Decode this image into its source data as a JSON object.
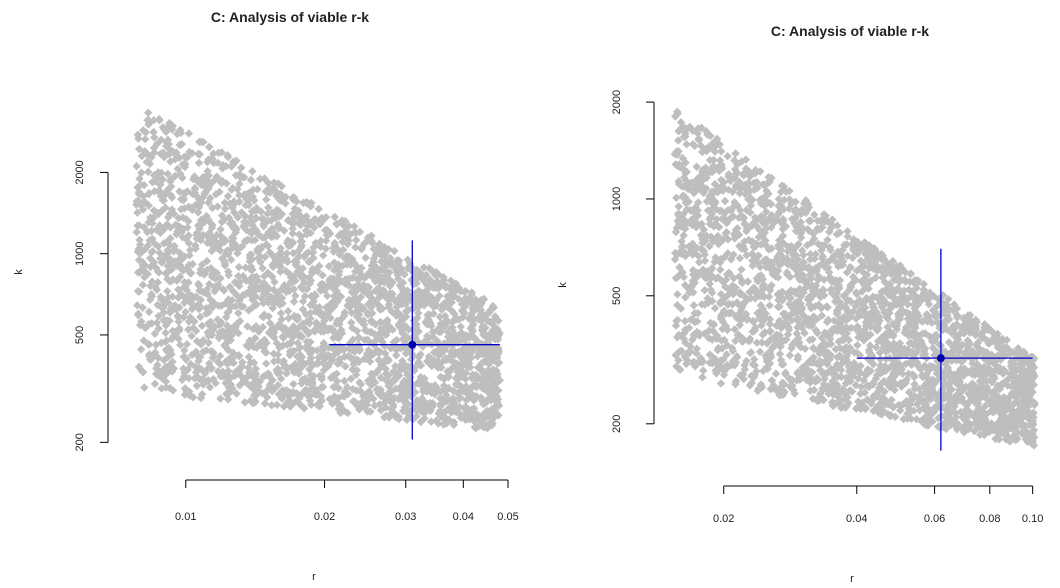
{
  "chart_data": [
    {
      "type": "scatter",
      "title": "C: Analysis of viable r-k",
      "xlabel": "r",
      "ylabel": "k",
      "x_scale": "log",
      "y_scale": "log",
      "xlim": [
        0.0072,
        0.05
      ],
      "ylim": [
        175,
        4400
      ],
      "x_ticks": [
        0.01,
        0.02,
        0.03,
        0.04,
        0.05
      ],
      "x_tick_labels": [
        "0.01",
        "0.02",
        "0.03",
        "0.04",
        "0.05"
      ],
      "y_ticks": [
        200,
        500,
        1000,
        2000
      ],
      "y_tick_labels": [
        "200",
        "500",
        "1000",
        "2000"
      ],
      "grid": false,
      "point_color": "#bebebe",
      "marker_color": "#0000cc",
      "viable_region": {
        "r_min": 0.0078,
        "r_max": 0.048,
        "k_top_at_rmin": 3600,
        "k_top_at_rmax": 630,
        "k_bottom_at_rmin": 310,
        "k_bottom_at_rmax": 220
      },
      "estimate": {
        "r": 0.031,
        "k": 460
      },
      "r_interval": [
        0.0205,
        0.048
      ],
      "k_interval": [
        205,
        1120
      ]
    },
    {
      "type": "scatter",
      "title": "C: Analysis of viable r-k",
      "xlabel": "r",
      "ylabel": "k",
      "x_scale": "log",
      "y_scale": "log",
      "xlim": [
        0.0145,
        0.105
      ],
      "ylim": [
        150,
        2150
      ],
      "x_ticks": [
        0.02,
        0.04,
        0.06,
        0.08,
        0.1
      ],
      "x_tick_labels": [
        "0.02",
        "0.04",
        "0.06",
        "0.08",
        "0.10"
      ],
      "y_ticks": [
        200,
        500,
        1000,
        2000
      ],
      "y_tick_labels": [
        "200",
        "500",
        "1000",
        "2000"
      ],
      "grid": false,
      "point_color": "#bebebe",
      "marker_color": "#0000cc",
      "viable_region": {
        "r_min": 0.0155,
        "r_max": 0.101,
        "k_top_at_rmin": 1900,
        "k_top_at_rmax": 320,
        "k_bottom_at_rmin": 280,
        "k_bottom_at_rmax": 170
      },
      "estimate": {
        "r": 0.062,
        "k": 320
      },
      "r_interval": [
        0.04,
        0.1
      ],
      "k_interval": [
        165,
        700
      ]
    }
  ]
}
